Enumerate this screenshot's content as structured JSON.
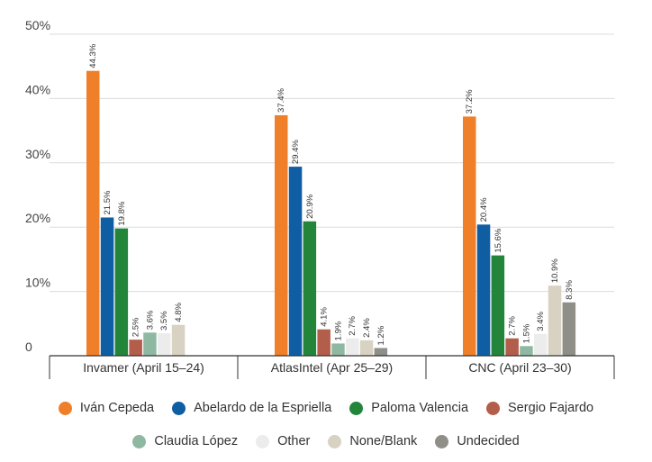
{
  "chart_data": {
    "type": "bar",
    "categories": [
      "Invamer (April 15–24)",
      "AtlasIntel (Apr 25–29)",
      "CNC (April 23–30)"
    ],
    "ylim": [
      0,
      50
    ],
    "yticks": [
      "",
      "10%",
      "20%",
      "30%",
      "40%",
      "50%"
    ],
    "ytick_values": [
      0,
      10,
      20,
      30,
      40,
      50
    ],
    "zero_label": "0",
    "grid": true,
    "legend_position": "bottom",
    "series": [
      {
        "name": "Iván Cepeda",
        "color": "#f07f2a",
        "values": [
          44.3,
          37.4,
          37.2
        ],
        "labels": [
          "44.3%",
          "37.4%",
          "37.2%"
        ]
      },
      {
        "name": "Abelardo de la Espriella",
        "color": "#0f5ea4",
        "values": [
          21.5,
          29.4,
          20.4
        ],
        "labels": [
          "21.5%",
          "29.4%",
          "20.4%"
        ]
      },
      {
        "name": "Paloma Valencia",
        "color": "#23853a",
        "values": [
          19.8,
          20.9,
          15.6
        ],
        "labels": [
          "19.8%",
          "20.9%",
          "15.6%"
        ]
      },
      {
        "name": "Sergio Fajardo",
        "color": "#b35e4b",
        "values": [
          2.5,
          4.1,
          2.7
        ],
        "labels": [
          "2.5%",
          "4.1%",
          "2.7%"
        ]
      },
      {
        "name": "Claudia López",
        "color": "#8fb8a3",
        "values": [
          3.6,
          1.9,
          1.5
        ],
        "labels": [
          "3.6%",
          "1.9%",
          "1.5%"
        ]
      },
      {
        "name": "Other",
        "color": "#ececec",
        "values": [
          3.5,
          2.7,
          3.4
        ],
        "labels": [
          "3.5%",
          "2.7%",
          "3.4%"
        ]
      },
      {
        "name": "None/Blank",
        "color": "#d8d2c3",
        "values": [
          4.8,
          2.4,
          10.9
        ],
        "labels": [
          "4.8%",
          "2.4%",
          "10.9%"
        ]
      },
      {
        "name": "Undecided",
        "color": "#8f8f88",
        "values": [
          null,
          1.2,
          8.3
        ],
        "labels": [
          "",
          "1.2%",
          "8.3%"
        ]
      }
    ]
  }
}
